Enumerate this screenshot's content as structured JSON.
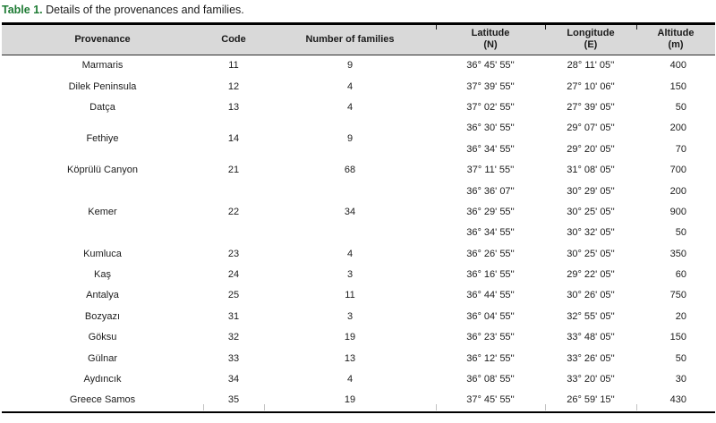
{
  "caption": {
    "label": "Table 1.",
    "text": "Details of the provenances and families."
  },
  "table": {
    "columns": [
      {
        "label": "Provenance"
      },
      {
        "label": "Code"
      },
      {
        "label": "Number of families"
      },
      {
        "label": "Latitude",
        "sub": "(N)"
      },
      {
        "label": "Longitude",
        "sub": "(E)"
      },
      {
        "label": "Altitude",
        "sub": "(m)"
      }
    ],
    "rows": [
      {
        "provenance": "Marmaris",
        "code": "11",
        "families": "9",
        "coords": [
          {
            "lat": "36° 45' 55''",
            "lon": "28° 11' 05''",
            "alt": "400"
          }
        ]
      },
      {
        "provenance": "Dilek Peninsula",
        "code": "12",
        "families": "4",
        "coords": [
          {
            "lat": "37° 39' 55''",
            "lon": "27° 10' 06''",
            "alt": "150"
          }
        ]
      },
      {
        "provenance": "Datça",
        "code": "13",
        "families": "4",
        "coords": [
          {
            "lat": "37° 02' 55''",
            "lon": "27° 39' 05''",
            "alt": "50"
          }
        ]
      },
      {
        "provenance": "Fethiye",
        "code": "14",
        "families": "9",
        "coords": [
          {
            "lat": "36° 30' 55''",
            "lon": "29° 07' 05''",
            "alt": "200"
          },
          {
            "lat": "36° 34' 55''",
            "lon": "29° 20' 05''",
            "alt": "70"
          }
        ]
      },
      {
        "provenance": "Köprülü Canyon",
        "code": "21",
        "families": "68",
        "coords": [
          {
            "lat": "37° 11' 55''",
            "lon": "31° 08' 05''",
            "alt": "700"
          }
        ]
      },
      {
        "provenance": "Kemer",
        "code": "22",
        "families": "34",
        "coords": [
          {
            "lat": "36° 36' 07''",
            "lon": "30° 29' 05''",
            "alt": "200"
          },
          {
            "lat": "36° 29' 55''",
            "lon": "30° 25' 05''",
            "alt": "900"
          },
          {
            "lat": "36° 34' 55''",
            "lon": "30° 32' 05''",
            "alt": "50"
          }
        ]
      },
      {
        "provenance": "Kumluca",
        "code": "23",
        "families": "4",
        "coords": [
          {
            "lat": "36° 26' 55''",
            "lon": "30° 25' 05''",
            "alt": "350"
          }
        ]
      },
      {
        "provenance": "Kaş",
        "code": "24",
        "families": "3",
        "coords": [
          {
            "lat": "36° 16' 55''",
            "lon": "29° 22' 05''",
            "alt": "60"
          }
        ]
      },
      {
        "provenance": "Antalya",
        "code": "25",
        "families": "11",
        "coords": [
          {
            "lat": "36° 44' 55''",
            "lon": "30° 26' 05''",
            "alt": "750"
          }
        ]
      },
      {
        "provenance": "Bozyazı",
        "code": "31",
        "families": "3",
        "coords": [
          {
            "lat": "36° 04' 55''",
            "lon": "32° 55' 05''",
            "alt": "20"
          }
        ]
      },
      {
        "provenance": "Göksu",
        "code": "32",
        "families": "19",
        "coords": [
          {
            "lat": "36° 23' 55''",
            "lon": "33° 48' 05''",
            "alt": "150"
          }
        ]
      },
      {
        "provenance": "Gülnar",
        "code": "33",
        "families": "13",
        "coords": [
          {
            "lat": "36° 12' 55''",
            "lon": "33° 26' 05''",
            "alt": "50"
          }
        ]
      },
      {
        "provenance": "Aydıncık",
        "code": "34",
        "families": "4",
        "coords": [
          {
            "lat": "36° 08' 55''",
            "lon": "33° 20' 05''",
            "alt": "30"
          }
        ]
      },
      {
        "provenance": "Greece Samos",
        "code": "35",
        "families": "19",
        "coords": [
          {
            "lat": "37° 45' 55''",
            "lon": "26° 59' 15''",
            "alt": "430"
          }
        ]
      }
    ]
  },
  "colors": {
    "caption_green": "#1e7b34",
    "header_bg": "#d9d9d9",
    "border_black": "#000000"
  }
}
